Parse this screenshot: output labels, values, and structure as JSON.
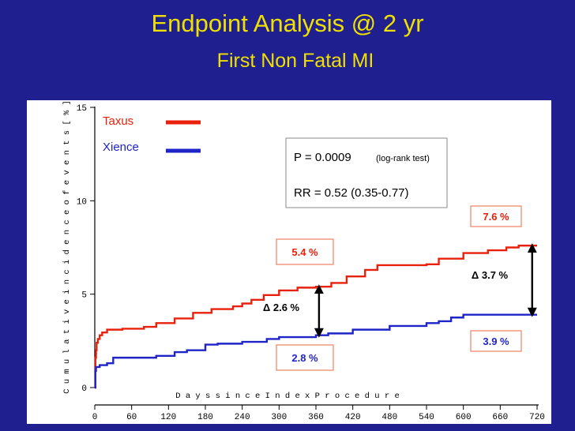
{
  "slide": {
    "title": "Endpoint Analysis @ 2 yr",
    "subtitle": "First Non Fatal MI"
  },
  "colors": {
    "background": "#1f1f8f",
    "title": "#f0e000",
    "taxus": "#e8200c",
    "xience": "#1f24c8",
    "box_border": "#f08060"
  },
  "chart_data": {
    "type": "line",
    "title": "",
    "xlabel": "D a y s   s i n c e   I n d e x   P r o c e d u r e",
    "ylabel": "C u m u l a t i v e   i n c i d e n c e   o f   e v e n t s   [ % ]",
    "xlim": [
      0,
      720
    ],
    "ylim": [
      0,
      15
    ],
    "x_ticks": [
      "0",
      "60",
      "120",
      "180",
      "240",
      "300",
      "360",
      "420",
      "480",
      "540",
      "600",
      "660",
      "720"
    ],
    "y_ticks": [
      "0",
      "5",
      "10",
      "15"
    ],
    "series": [
      {
        "name": "Taxus",
        "color": "#e8200c",
        "points": [
          [
            0,
            0
          ],
          [
            1,
            1.6
          ],
          [
            2,
            2.0
          ],
          [
            3,
            2.4
          ],
          [
            5,
            2.6
          ],
          [
            8,
            2.8
          ],
          [
            12,
            2.95
          ],
          [
            20,
            3.1
          ],
          [
            45,
            3.15
          ],
          [
            80,
            3.25
          ],
          [
            100,
            3.45
          ],
          [
            130,
            3.7
          ],
          [
            160,
            4.0
          ],
          [
            190,
            4.2
          ],
          [
            225,
            4.35
          ],
          [
            240,
            4.5
          ],
          [
            255,
            4.7
          ],
          [
            275,
            4.95
          ],
          [
            300,
            5.2
          ],
          [
            330,
            5.35
          ],
          [
            360,
            5.4
          ],
          [
            385,
            5.6
          ],
          [
            410,
            5.95
          ],
          [
            440,
            6.3
          ],
          [
            460,
            6.55
          ],
          [
            540,
            6.6
          ],
          [
            560,
            6.9
          ],
          [
            600,
            7.2
          ],
          [
            640,
            7.35
          ],
          [
            670,
            7.5
          ],
          [
            690,
            7.6
          ],
          [
            720,
            7.6
          ]
        ]
      },
      {
        "name": "Xience",
        "color": "#1f24c8",
        "points": [
          [
            0,
            0
          ],
          [
            1,
            0.9
          ],
          [
            2,
            1.1
          ],
          [
            8,
            1.2
          ],
          [
            20,
            1.3
          ],
          [
            30,
            1.6
          ],
          [
            100,
            1.7
          ],
          [
            130,
            1.9
          ],
          [
            150,
            2.0
          ],
          [
            180,
            2.3
          ],
          [
            200,
            2.35
          ],
          [
            240,
            2.45
          ],
          [
            280,
            2.6
          ],
          [
            300,
            2.7
          ],
          [
            360,
            2.8
          ],
          [
            380,
            2.9
          ],
          [
            420,
            3.1
          ],
          [
            480,
            3.3
          ],
          [
            540,
            3.45
          ],
          [
            560,
            3.55
          ],
          [
            580,
            3.75
          ],
          [
            600,
            3.9
          ],
          [
            720,
            3.9
          ]
        ]
      }
    ],
    "legend": {
      "position": "top-left",
      "entries": [
        "Taxus",
        "Xience"
      ]
    },
    "stats": {
      "p_value": "P = 0.0009",
      "p_note": "(log-rank test)",
      "rr": "RR = 0.52 (0.35-0.77)"
    },
    "annotations": {
      "taxus_365": "5.4 %",
      "xience_365": "2.8 %",
      "delta_365": "Δ 2.6 %",
      "taxus_720": "7.6 %",
      "xience_720": "3.9 %",
      "delta_720": "Δ 3.7 %"
    },
    "markers": {
      "delta_365": {
        "x": 365,
        "y_top": 5.4,
        "y_bottom": 2.8
      },
      "delta_720": {
        "x": 712,
        "y_top": 7.6,
        "y_bottom": 3.9
      }
    }
  }
}
